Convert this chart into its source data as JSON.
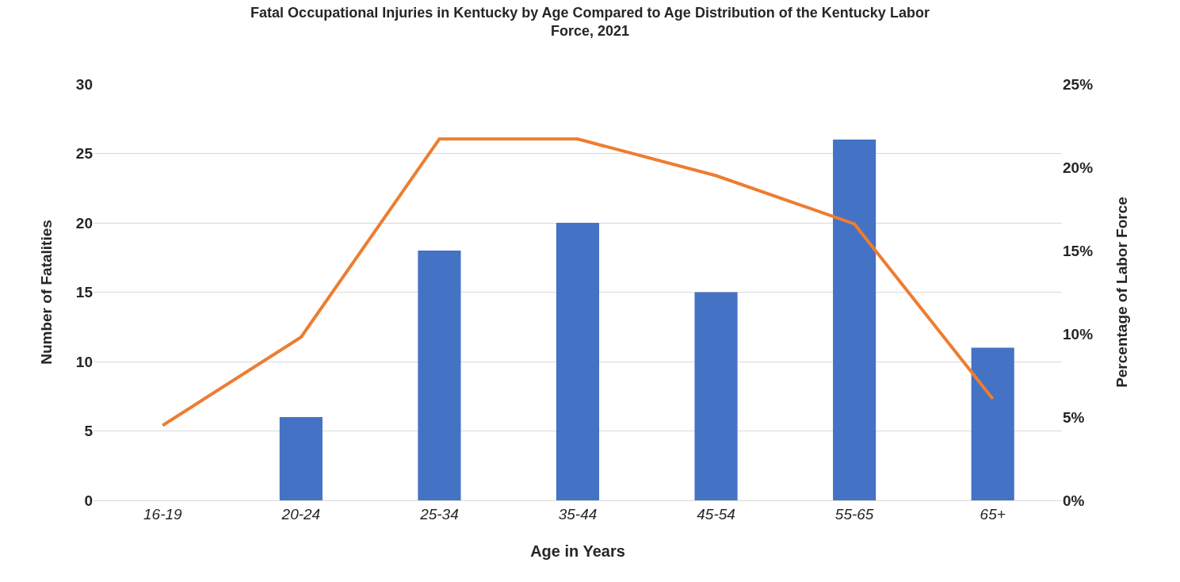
{
  "chart_data": {
    "type": "bar",
    "title": "Fatal Occupational Injuries in Kentucky by Age Compared to Age Distribution of the Kentucky Labor Force, 2021",
    "xlabel": "Age in Years",
    "ylabel": "Number of Fatalities",
    "y2label": "Percentage of Labor Force",
    "categories": [
      "16-19",
      "20-24",
      "25-34",
      "35-44",
      "45-54",
      "55-65",
      "65+"
    ],
    "series": [
      {
        "color": "#4472c4",
        "values": [
          0,
          6,
          18,
          20,
          15,
          26,
          11
        ]
      },
      {
        "type": "line",
        "axis": "y2",
        "color": "#ed7d31",
        "values": [
          4.5,
          9.8,
          21.7,
          21.7,
          19.5,
          16.6,
          6.1
        ]
      }
    ],
    "ylim": [
      0,
      30
    ],
    "yticks": [
      0,
      5,
      10,
      15,
      20,
      25,
      30
    ],
    "y2lim": [
      0,
      25
    ],
    "y2ticks": [
      {
        "value": 0,
        "label": "0%"
      },
      {
        "value": 5,
        "label": "5%"
      },
      {
        "value": 10,
        "label": "10%"
      },
      {
        "value": 15,
        "label": "15%"
      },
      {
        "value": 20,
        "label": "20%"
      },
      {
        "value": 25,
        "label": "25%"
      }
    ],
    "grid": "y",
    "legend": false,
    "marker": "none",
    "line_style": "solid"
  }
}
